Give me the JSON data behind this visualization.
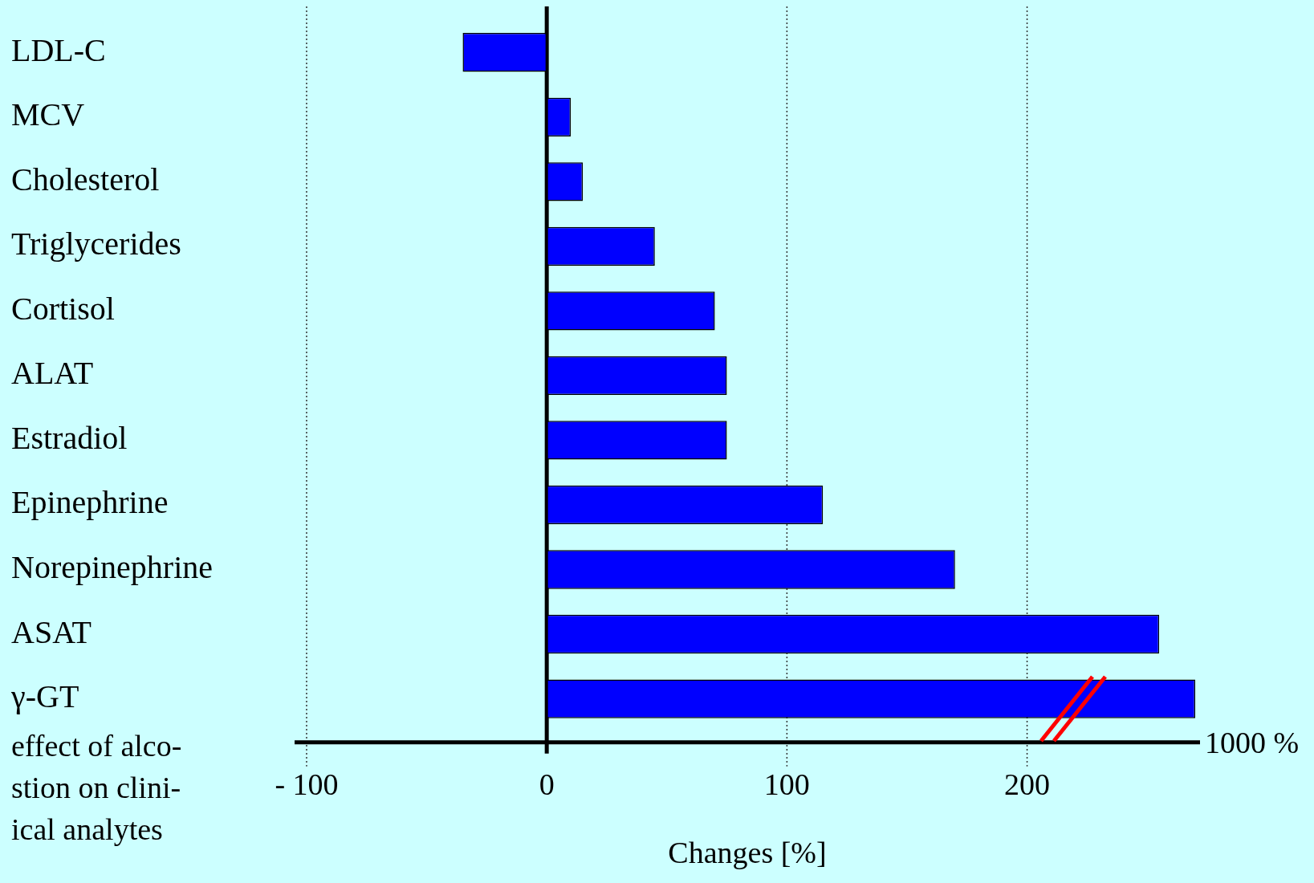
{
  "chart_data": {
    "type": "bar",
    "orientation": "horizontal",
    "xlabel": "Changes [%]",
    "categories": [
      "LDL-C",
      "MCV",
      "Cholesterol",
      "Triglycerides",
      "Cortisol",
      "ALAT",
      "Estradiol",
      "Epinephrine",
      "Norepinephrine",
      "ASAT",
      "γ-GT"
    ],
    "values": [
      -35,
      10,
      15,
      45,
      70,
      75,
      75,
      115,
      170,
      255,
      270
    ],
    "color": "#0000ff",
    "xlim": [
      -105,
      272
    ],
    "xticks": [
      {
        "value": -100,
        "label": "- 100"
      },
      0,
      100,
      200
    ],
    "grid": "x",
    "legend": false,
    "annotations": [
      "1000 %",
      "effect of alco-\nstion on clini-\nical analytes"
    ]
  }
}
